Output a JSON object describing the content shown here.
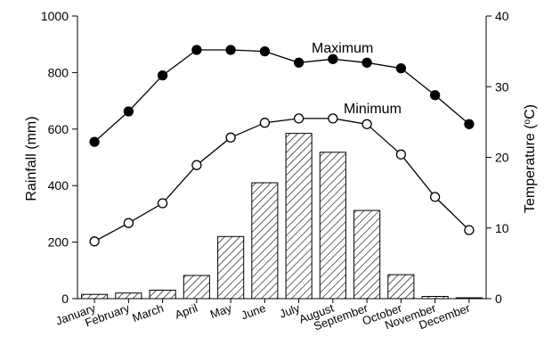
{
  "chart_data": {
    "type": "bar",
    "categories": [
      "January",
      "February",
      "March",
      "April",
      "May",
      "June",
      "July",
      "August",
      "September",
      "October",
      "November",
      "December"
    ],
    "ylabel": "Rainfall (mm)",
    "ylim": [
      0,
      1000
    ],
    "yticks": [
      "0",
      "200",
      "400",
      "600",
      "800",
      "1000"
    ],
    "y2label_main": "Temperature (",
    "y2label_sup": "o",
    "y2label_end": "C)",
    "y2lim": [
      0,
      40
    ],
    "y2ticks": [
      "0",
      "10",
      "20",
      "30",
      "40"
    ],
    "rainfall": [
      15,
      20,
      30,
      82,
      220,
      410,
      585,
      518,
      312,
      85,
      8,
      3
    ],
    "temperature_series": [
      {
        "name": "Maximum",
        "marker": "filled",
        "values": [
          22.2,
          26.5,
          31.6,
          35.2,
          35.2,
          35.0,
          33.4,
          33.9,
          33.4,
          32.6,
          28.8,
          24.7
        ]
      },
      {
        "name": "Minimum",
        "marker": "open",
        "values": [
          8.1,
          10.7,
          13.5,
          18.9,
          22.8,
          24.9,
          25.5,
          25.5,
          24.7,
          20.4,
          14.4,
          9.7
        ]
      }
    ],
    "annotations": [
      "Maximum",
      "Minimum"
    ],
    "legend": "none",
    "grid": false
  }
}
